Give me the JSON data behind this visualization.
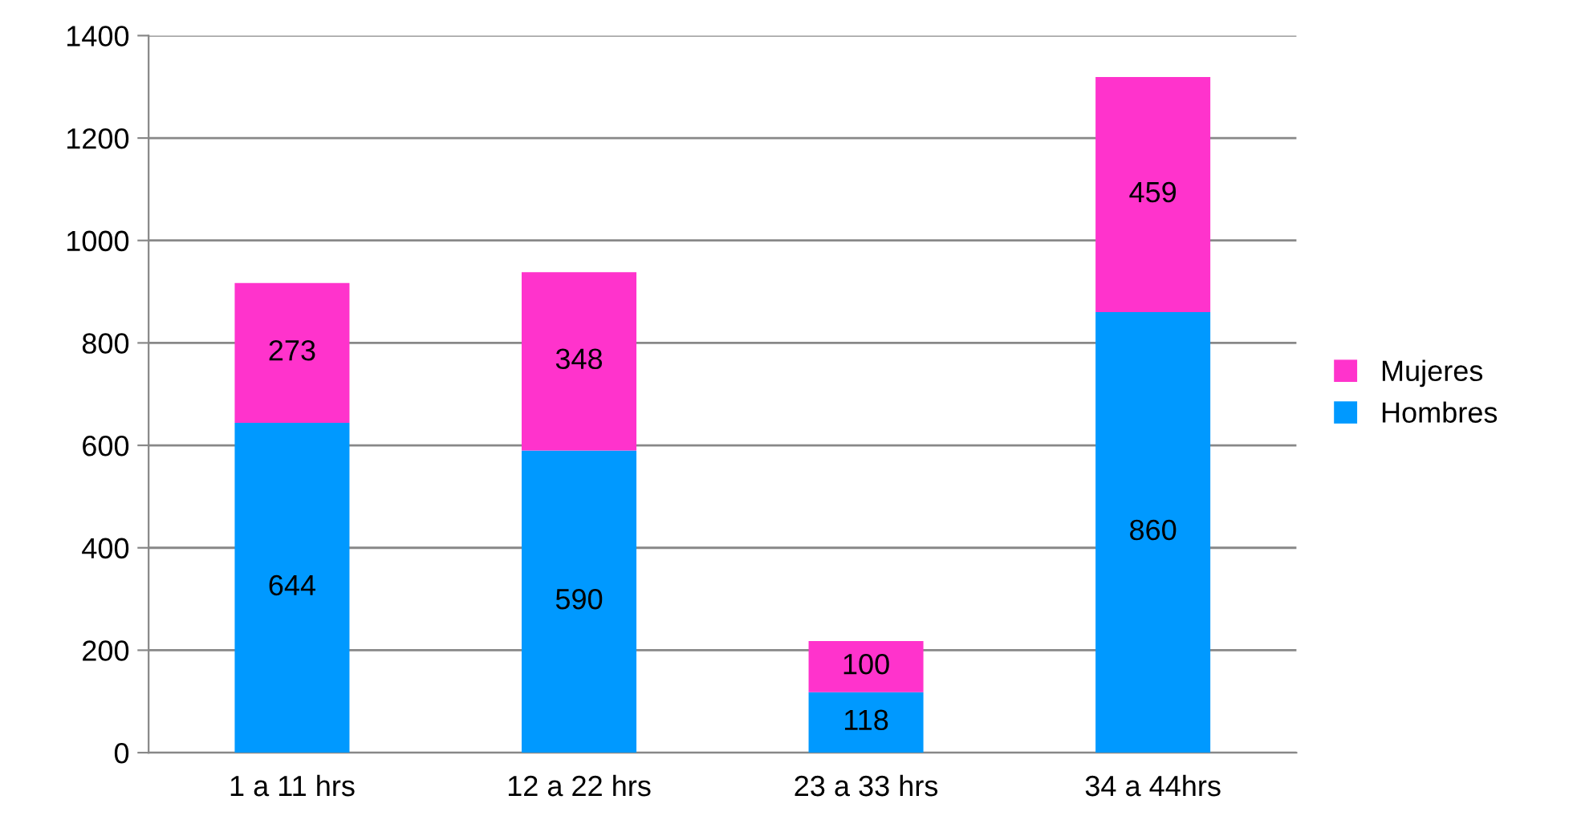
{
  "chart_data": {
    "type": "bar",
    "stacked": true,
    "categories": [
      "1 a 11 hrs",
      "12 a 22 hrs",
      "23 a 33 hrs",
      "34 a 44hrs"
    ],
    "series": [
      {
        "name": "Hombres",
        "color": "#0099ff",
        "values": [
          644,
          590,
          118,
          860
        ]
      },
      {
        "name": "Mujeres",
        "color": "#ff33cc",
        "values": [
          273,
          348,
          100,
          459
        ]
      }
    ],
    "ylim": [
      0,
      1400
    ],
    "yticks": [
      0,
      200,
      400,
      600,
      800,
      1000,
      1200,
      1400
    ],
    "grid": "y",
    "legend": "right",
    "data_labels": true
  }
}
